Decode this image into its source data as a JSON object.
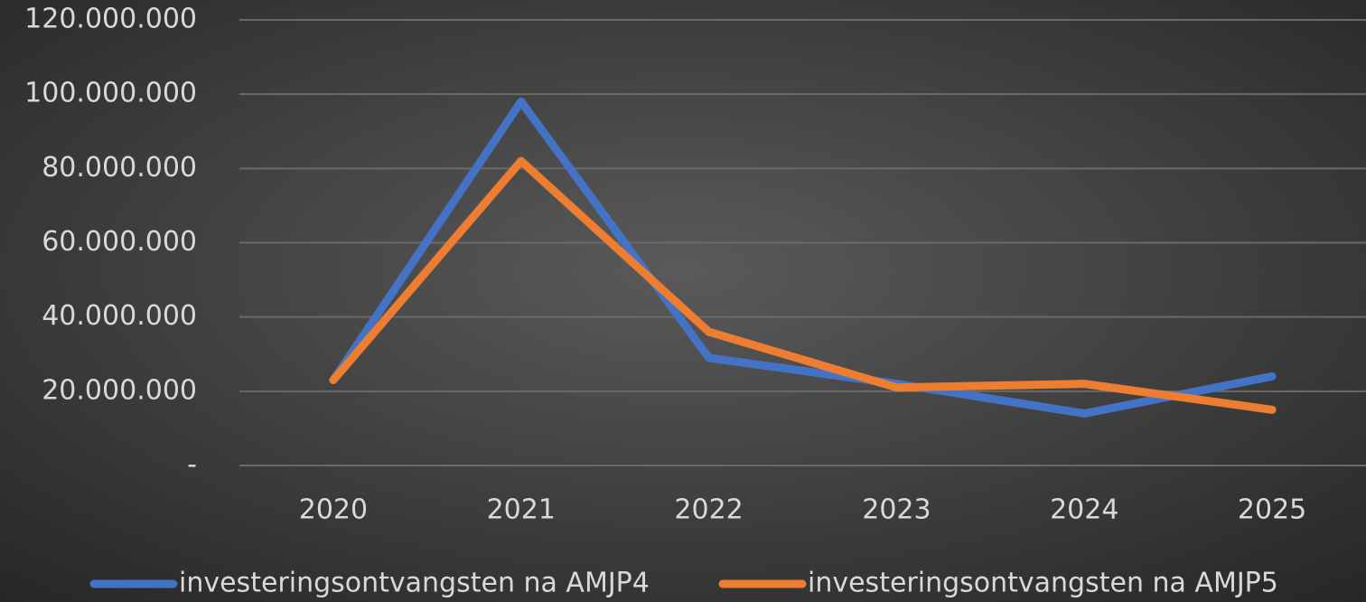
{
  "chart_data": {
    "type": "line",
    "categories": [
      "2020",
      "2021",
      "2022",
      "2023",
      "2024",
      "2025"
    ],
    "series": [
      {
        "name": "investeringsontvangsten na AMJP4",
        "color": "#4472c4",
        "values": [
          23000000,
          98000000,
          29000000,
          22000000,
          14000000,
          24000000
        ]
      },
      {
        "name": "investeringsontvangsten na AMJP5",
        "color": "#ed7d31",
        "values": [
          23000000,
          82000000,
          36000000,
          21000000,
          22000000,
          15000000
        ]
      }
    ],
    "ylim": [
      0,
      120000000
    ],
    "yticks": [
      {
        "value": 0,
        "label": "-"
      },
      {
        "value": 20000000,
        "label": "20.000.000"
      },
      {
        "value": 40000000,
        "label": "40.000.000"
      },
      {
        "value": 60000000,
        "label": "60.000.000"
      },
      {
        "value": 80000000,
        "label": "80.000.000"
      },
      {
        "value": 100000000,
        "label": "100.000.000"
      },
      {
        "value": 120000000,
        "label": "120.000.000"
      }
    ],
    "grid": true,
    "legend": "bottom"
  }
}
